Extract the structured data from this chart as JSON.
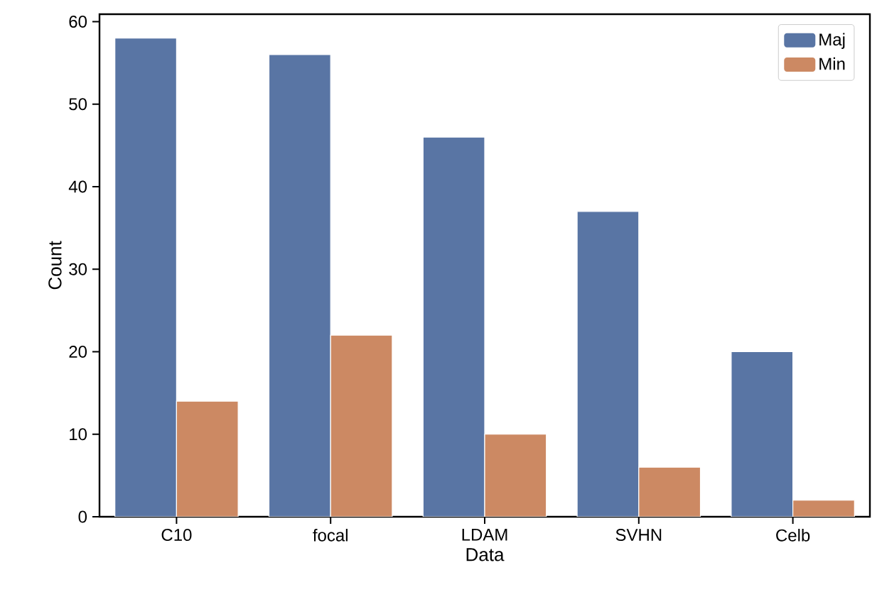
{
  "chart_data": {
    "type": "bar",
    "xlabel": "Data",
    "ylabel": "Count",
    "categories": [
      "C10",
      "focal",
      "LDAM",
      "SVHN",
      "Celb"
    ],
    "series": [
      {
        "name": "Maj",
        "color": "#5975a4",
        "values": [
          58,
          56,
          46,
          37,
          20
        ]
      },
      {
        "name": "Min",
        "color": "#cc8963",
        "values": [
          14,
          22,
          10,
          6,
          2
        ]
      }
    ],
    "ylim": [
      0,
      60.9
    ],
    "yticks": [
      0,
      10,
      20,
      30,
      40,
      50,
      60
    ],
    "grid": false,
    "legend": "top right"
  }
}
